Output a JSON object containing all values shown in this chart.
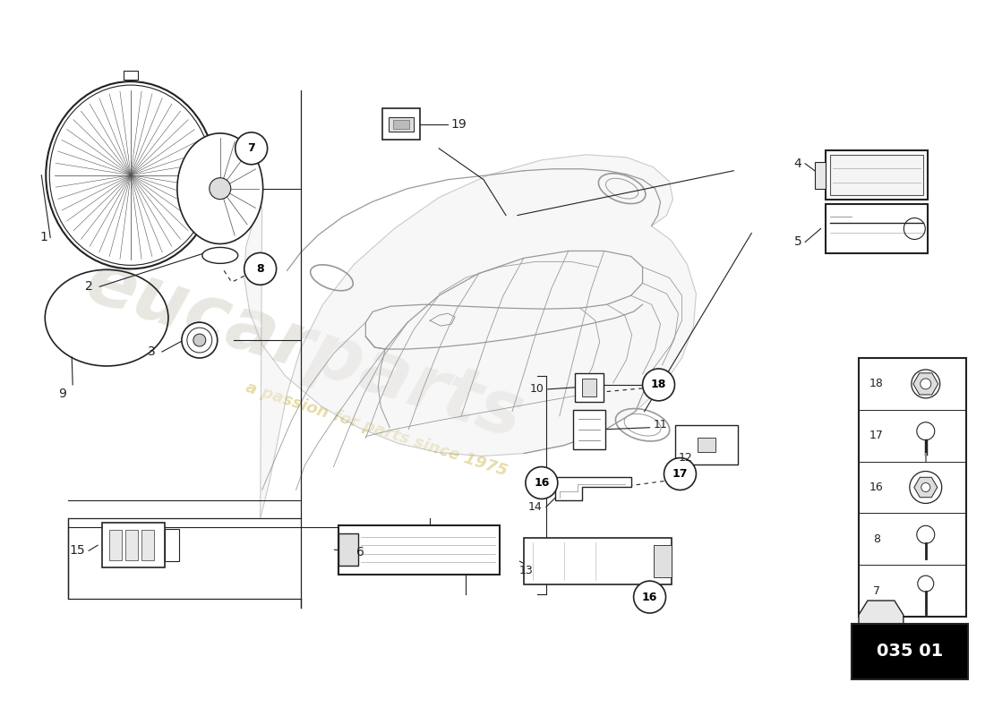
{
  "background_color": "#ffffff",
  "diagram_code": "035 01",
  "fig_width": 11.0,
  "fig_height": 8.0,
  "line_color": "#222222",
  "gray": "#888888",
  "light_gray": "#bbbbbb"
}
